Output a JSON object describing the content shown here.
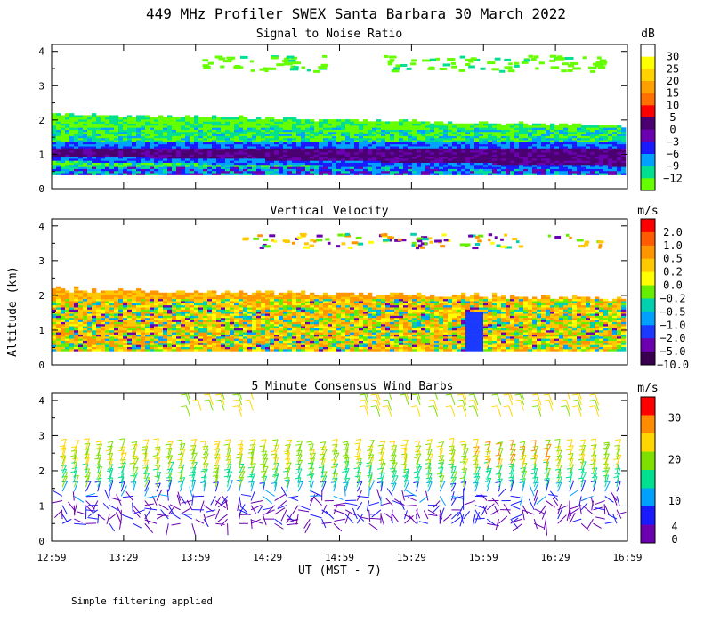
{
  "figure_title": "449 MHz Profiler SWEX Santa Barbara 30 March 2022",
  "footnote": "Simple filtering applied",
  "colors": {
    "background": "#ffffff",
    "axis": "#000000"
  },
  "chart_data": [
    {
      "type": "heatmap",
      "panel": "snr",
      "title": "Signal to Noise Ratio",
      "xlabel": "UT  (MST - 7)",
      "ylabel": "Altitude (km)",
      "x_ticks": [
        "12:59",
        "13:29",
        "13:59",
        "14:29",
        "14:59",
        "15:29",
        "15:59",
        "16:29",
        "16:59"
      ],
      "y_ticks": [
        "0",
        "1",
        "2",
        "3",
        "4"
      ],
      "ylim": [
        0,
        4.2
      ],
      "colorbar": {
        "unit": "dB",
        "labels": [
          "30",
          "25",
          "20",
          "15",
          "10",
          "5",
          "0",
          "−3",
          "−6",
          "−9",
          "−12"
        ],
        "colors": [
          "#ffffff",
          "#ffff00",
          "#ffd200",
          "#ffa000",
          "#ff7000",
          "#ff0000",
          "#4a0070",
          "#6a00b0",
          "#1a1aff",
          "#00a0ff",
          "#00e090",
          "#66ff00"
        ]
      }
    },
    {
      "type": "heatmap",
      "panel": "vertical_velocity",
      "title": "Vertical Velocity",
      "y_ticks": [
        "0",
        "1",
        "2",
        "3",
        "4"
      ],
      "ylim": [
        0,
        4.2
      ],
      "colorbar": {
        "unit": "m/s",
        "labels": [
          "2.0",
          "1.0",
          "0.5",
          "0.2",
          "0.0",
          "−0.2",
          "−0.5",
          "−1.0",
          "−2.0",
          "−5.0",
          "−10.0"
        ],
        "colors": [
          "#ff0000",
          "#ff5a00",
          "#ff9600",
          "#ffc800",
          "#ffff00",
          "#66ee00",
          "#00d0b0",
          "#00a0ff",
          "#1a3aff",
          "#6a00b0",
          "#3a0050"
        ]
      }
    },
    {
      "type": "wind_barbs",
      "panel": "wind_barbs",
      "title": "5 Minute Consensus Wind Barbs",
      "y_ticks": [
        "0",
        "1",
        "2",
        "3",
        "4"
      ],
      "ylim": [
        0,
        4.2
      ],
      "colorbar": {
        "unit": "m/s",
        "labels": [
          "30",
          "20",
          "10",
          "4",
          "0"
        ],
        "colors": [
          "#ff0000",
          "#ff8c00",
          "#ffd700",
          "#7ee000",
          "#00e090",
          "#00a0ff",
          "#1a1aff",
          "#6a00b0"
        ]
      }
    }
  ]
}
